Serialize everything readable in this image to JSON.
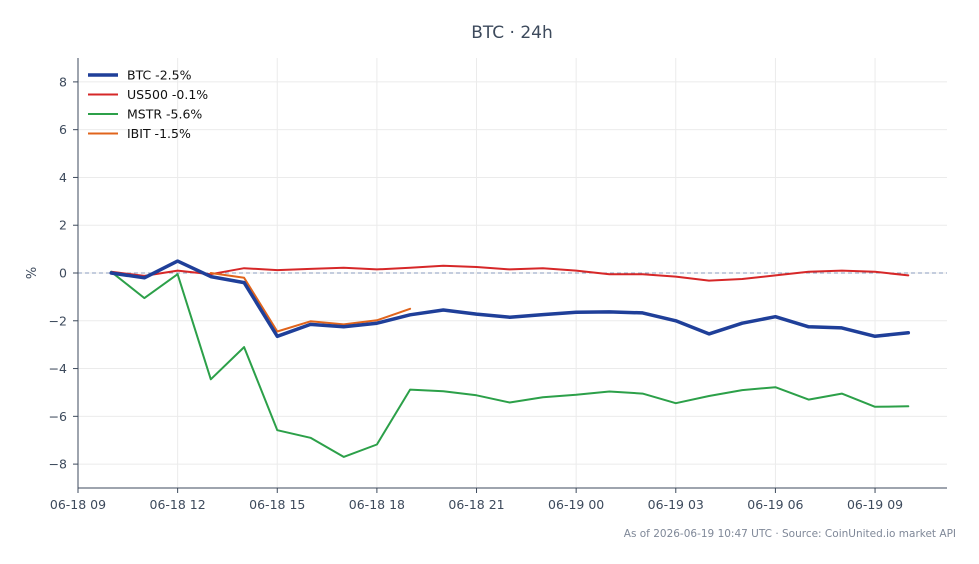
{
  "chart_data": {
    "type": "line",
    "title": "BTC · 24h",
    "xlabel": "",
    "ylabel": "%",
    "x": [
      "2026-06-18 10:00",
      "2026-06-18 11:00",
      "2026-06-18 12:00",
      "2026-06-18 13:00",
      "2026-06-18 14:00",
      "2026-06-18 15:00",
      "2026-06-18 16:00",
      "2026-06-18 17:00",
      "2026-06-18 18:00",
      "2026-06-18 19:00",
      "2026-06-18 20:00",
      "2026-06-18 21:00",
      "2026-06-18 22:00",
      "2026-06-18 23:00",
      "2026-06-19 00:00",
      "2026-06-19 01:00",
      "2026-06-19 02:00",
      "2026-06-19 03:00",
      "2026-06-19 04:00",
      "2026-06-19 05:00",
      "2026-06-19 06:00",
      "2026-06-19 07:00",
      "2026-06-19 08:00",
      "2026-06-19 09:00",
      "2026-06-19 10:00"
    ],
    "xlim": [
      "2026-06-18 09:00",
      "2026-06-19 11:10"
    ],
    "xticks": [
      "2026-06-18 09:00",
      "2026-06-18 12:00",
      "2026-06-18 15:00",
      "2026-06-18 18:00",
      "2026-06-18 21:00",
      "2026-06-19 00:00",
      "2026-06-19 03:00",
      "2026-06-19 06:00",
      "2026-06-19 09:00"
    ],
    "xtick_labels": [
      "06-18 09",
      "06-18 12",
      "06-18 15",
      "06-18 18",
      "06-18 21",
      "06-19 00",
      "06-19 03",
      "06-19 06",
      "06-19 09"
    ],
    "ylim": [
      -9,
      9
    ],
    "yticks": [
      -8,
      -6,
      -4,
      -2,
      0,
      2,
      4,
      6,
      8
    ],
    "ytick_labels": [
      "−8",
      "−6",
      "−4",
      "−2",
      "0",
      "2",
      "4",
      "6",
      "8"
    ],
    "grid": true,
    "reference_line": 0,
    "legend_position": "top-left",
    "series": [
      {
        "name": "BTC -2.5%",
        "color": "#1f3f99",
        "emphasis": true,
        "values": [
          0.0,
          -0.2,
          0.5,
          -0.15,
          -0.4,
          -2.65,
          -2.15,
          -2.25,
          -2.1,
          -1.75,
          -1.55,
          -1.72,
          -1.85,
          -1.74,
          -1.64,
          -1.63,
          -1.67,
          -2.0,
          -2.55,
          -2.1,
          -1.83,
          -2.25,
          -2.3,
          -2.65,
          -2.5
        ]
      },
      {
        "name": "US500 -0.1%",
        "color": "#d62728",
        "values": [
          0.05,
          -0.12,
          0.1,
          -0.05,
          0.2,
          0.12,
          0.17,
          0.22,
          0.15,
          0.22,
          0.3,
          0.25,
          0.15,
          0.2,
          0.1,
          -0.05,
          -0.05,
          -0.15,
          -0.32,
          -0.25,
          -0.1,
          0.05,
          0.1,
          0.05,
          -0.1
        ]
      },
      {
        "name": "MSTR -5.6%",
        "color": "#2ca049",
        "values": [
          0.05,
          -1.05,
          -0.05,
          -4.45,
          -3.1,
          -6.58,
          -6.9,
          -7.7,
          -7.18,
          -4.88,
          -4.95,
          -5.12,
          -5.42,
          -5.2,
          -5.1,
          -4.96,
          -5.05,
          -5.45,
          -5.15,
          -4.9,
          -4.78,
          -5.3,
          -5.05,
          -5.6,
          -5.58
        ]
      },
      {
        "name": "IBIT -1.5%",
        "color": "#e0641c",
        "values": [
          null,
          null,
          null,
          0.0,
          -0.2,
          -2.45,
          -2.02,
          -2.15,
          -1.98,
          -1.5,
          null,
          null,
          null,
          null,
          null,
          null,
          null,
          null,
          null,
          null,
          null,
          null,
          null,
          null,
          null
        ],
        "x_start": "2026-06-18 13:00"
      }
    ]
  },
  "footer": "As of 2026-06-19 10:47 UTC · Source: CoinUnited.io market API"
}
